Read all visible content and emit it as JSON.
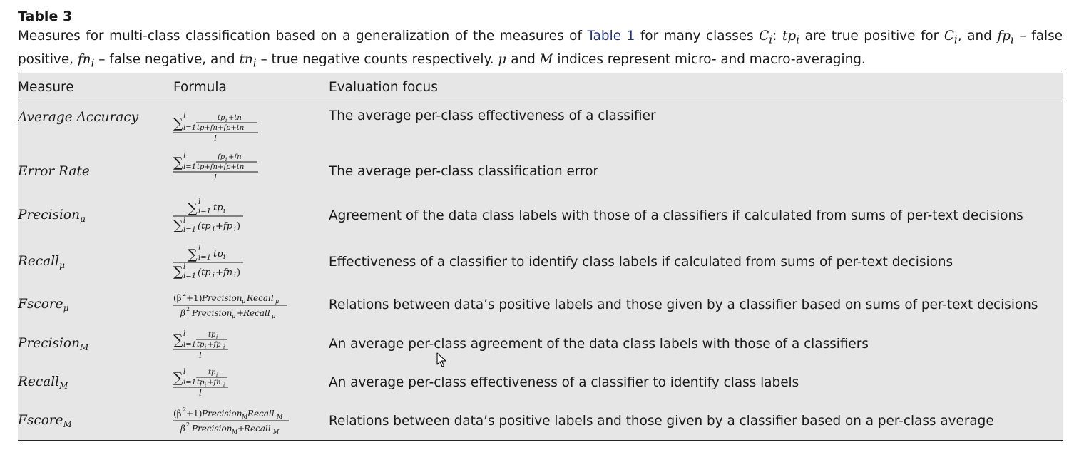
{
  "table_label": "Table 3",
  "caption": {
    "part1": "Measures for multi-class classification based on a generalization of the measures of ",
    "link": "Table 1",
    "part2": " for many classes ",
    "ci": "C",
    "ci_sub": "i",
    "part3": ": ",
    "tp": "tp",
    "part4": " are true positive for ",
    "part5": ", and ",
    "fp": "fp",
    "part6": " – false positive, ",
    "fn": "fn",
    "part7": " – false negative, and ",
    "tn": "tn",
    "part8": " – true negative counts respectively. ",
    "mu": "μ",
    "part9": " and ",
    "M": "M",
    "part10": " indices represent micro- and macro-averaging."
  },
  "headers": {
    "measure": "Measure",
    "formula": "Formula",
    "focus": "Evaluation focus"
  },
  "rows": [
    {
      "measure": "Average Accuracy",
      "formula": {
        "num_top": "tp",
        "num_top2": "+tn",
        "den": "tp+fn+fp+tn",
        "l": "l",
        "sum_lower": "i=1"
      },
      "focus": "The average per-class effectiveness of a classifier"
    },
    {
      "measure": "Error Rate",
      "formula": {
        "num_top": "fp",
        "num_top2": "+fn",
        "den": "tp+fn+fp+tn",
        "l": "l",
        "sum_lower": "i=1"
      },
      "focus": "The average per-class classification error"
    },
    {
      "measure": "Precision",
      "measure_sub": "μ",
      "formula": {
        "num": "tp",
        "den_a": "(tp",
        "den_b": "+fp",
        "den_c": ")",
        "l": "l",
        "sum_lower": "i=1"
      },
      "focus": "Agreement of the data class labels with those of a classifiers if calculated from sums of per-text decisions"
    },
    {
      "measure": "Recall",
      "measure_sub": "μ",
      "formula": {
        "num": "tp",
        "den_a": "(tp",
        "den_b": "+fn",
        "den_c": ")",
        "l": "l",
        "sum_lower": "i=1"
      },
      "focus": "Effectiveness of a classifier to identify class labels if calculated from sums of per-text decisions"
    },
    {
      "measure": "Fscore",
      "measure_sub": "μ",
      "formula": {
        "beta_num": "(β",
        "sq": "2",
        "plus1": "+1)",
        "p": "Precision",
        "r": "Recall",
        "beta_den": "β",
        "plus": "+",
        "sub": "μ"
      },
      "focus": "Relations between data’s positive labels and those given by a classifier based on sums of per-text decisions"
    },
    {
      "measure": "Precision",
      "measure_sub": "M",
      "formula": {
        "num": "tp",
        "den_a": "tp",
        "den_b": "+fp",
        "l": "l",
        "sum_lower": "i=1"
      },
      "focus": "An average per-class agreement of the data class labels with those of a classifiers"
    },
    {
      "measure": "Recall",
      "measure_sub": "M",
      "formula": {
        "num": "tp",
        "den_a": "tp",
        "den_b": "+fn",
        "l": "l",
        "sum_lower": "i=1"
      },
      "focus": "An average per-class effectiveness of a classifier to identify class labels"
    },
    {
      "measure": "Fscore",
      "measure_sub": "M",
      "formula": {
        "beta_num": "(β",
        "sq": "2",
        "plus1": "+1)",
        "p": "Precision",
        "r": "Recall",
        "beta_den": "β",
        "plus": "+",
        "sub": "M"
      },
      "focus": "Relations between data’s positive labels and those given by a classifier based on a per-class average"
    }
  ],
  "sum_symbol": "∑",
  "index_i": "i",
  "cursor_icon": "mouse-pointer-icon"
}
